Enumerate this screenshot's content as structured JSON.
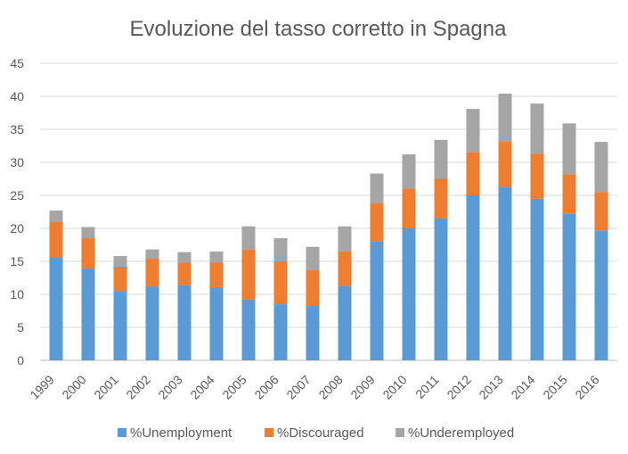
{
  "chart_data": {
    "type": "bar",
    "stacked": true,
    "title": "Evoluzione del tasso corretto in Spagna",
    "xlabel": "",
    "ylabel": "",
    "ylim": [
      0,
      45
    ],
    "yticks": [
      0,
      5,
      10,
      15,
      20,
      25,
      30,
      35,
      40,
      45
    ],
    "grid": true,
    "legend_position": "bottom",
    "categories": [
      "1999",
      "2000",
      "2001",
      "2002",
      "2003",
      "2004",
      "2005",
      "2006",
      "2007",
      "2008",
      "2009",
      "2010",
      "2011",
      "2012",
      "2013",
      "2014",
      "2015",
      "2016"
    ],
    "series": [
      {
        "name": "%Unemployment",
        "color": "#5B9BD5",
        "values": [
          15.6,
          13.9,
          10.4,
          11.2,
          11.4,
          11.1,
          9.2,
          8.5,
          8.3,
          11.3,
          18.0,
          20.0,
          21.5,
          25.0,
          26.3,
          24.5,
          22.2,
          19.7
        ]
      },
      {
        "name": "%Discouraged",
        "color": "#ED7D31",
        "values": [
          5.4,
          4.6,
          3.8,
          4.2,
          3.4,
          3.7,
          7.6,
          6.5,
          5.4,
          5.2,
          5.8,
          6.0,
          6.0,
          6.5,
          6.8,
          6.8,
          6.0,
          5.8
        ]
      },
      {
        "name": "%Underemployed",
        "color": "#A5A5A5",
        "values": [
          1.7,
          1.7,
          1.6,
          1.4,
          1.6,
          1.7,
          3.5,
          3.5,
          3.5,
          3.8,
          4.5,
          5.2,
          5.9,
          6.6,
          7.3,
          7.6,
          7.7,
          7.6
        ]
      }
    ]
  },
  "colors": {
    "grid": "#D9D9D9",
    "axis": "#BFBFBF",
    "text": "#595959"
  }
}
